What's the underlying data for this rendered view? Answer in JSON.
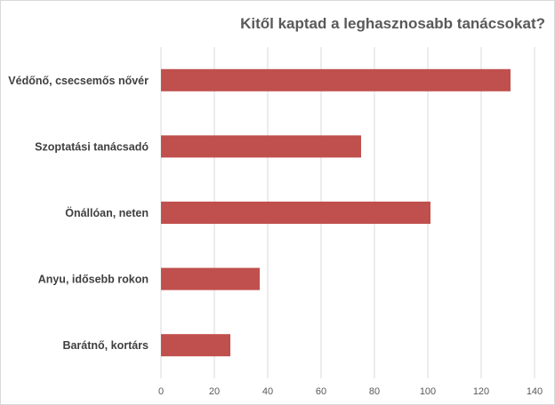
{
  "chart_data": {
    "type": "bar",
    "orientation": "horizontal",
    "title": "Kitől kaptad a leghasznosabb tanácsokat?",
    "categories": [
      "Védőnő, csecsemős nővér",
      "Szoptatási tanácsadó",
      "Önállóan, neten",
      "Anyu, idősebb rokon",
      "Barátnő, kortárs"
    ],
    "values": [
      131,
      75,
      101,
      37,
      26
    ],
    "xlim": [
      0,
      140
    ],
    "xticks": [
      "0",
      "20",
      "40",
      "60",
      "80",
      "100",
      "120",
      "140"
    ],
    "grid": "vertical",
    "legend": "none",
    "bar_color": "#c0504d",
    "grid_color": "#d9d9d9"
  }
}
